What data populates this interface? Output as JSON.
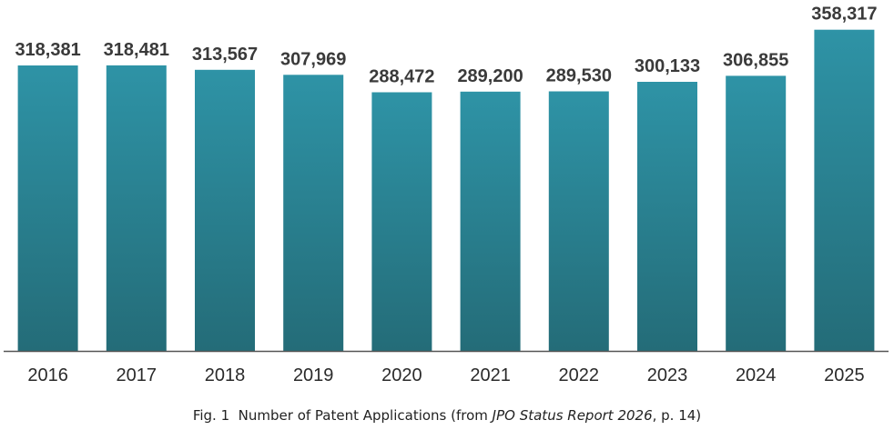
{
  "chart_data": {
    "type": "bar",
    "categories": [
      "2016",
      "2017",
      "2018",
      "2019",
      "2020",
      "2021",
      "2022",
      "2023",
      "2024",
      "2025"
    ],
    "values": [
      318381,
      318481,
      313567,
      307969,
      288472,
      289200,
      289530,
      300133,
      306855,
      358317
    ],
    "value_labels": [
      "318,381",
      "318,481",
      "313,567",
      "307,969",
      "288,472",
      "289,200",
      "289,530",
      "300,133",
      "306,855",
      "358,317"
    ],
    "ylim": [
      0,
      360000
    ],
    "grid": false,
    "legend": "none",
    "colors": {
      "bar_top": "#2e93a6",
      "bar_bottom": "#246c78",
      "axis": "#555555"
    }
  },
  "caption": {
    "prefix": "Fig. 1  Number of Patent Applications (from ",
    "source_title": "JPO Status Report 2026",
    "suffix": ", p. 14)"
  }
}
